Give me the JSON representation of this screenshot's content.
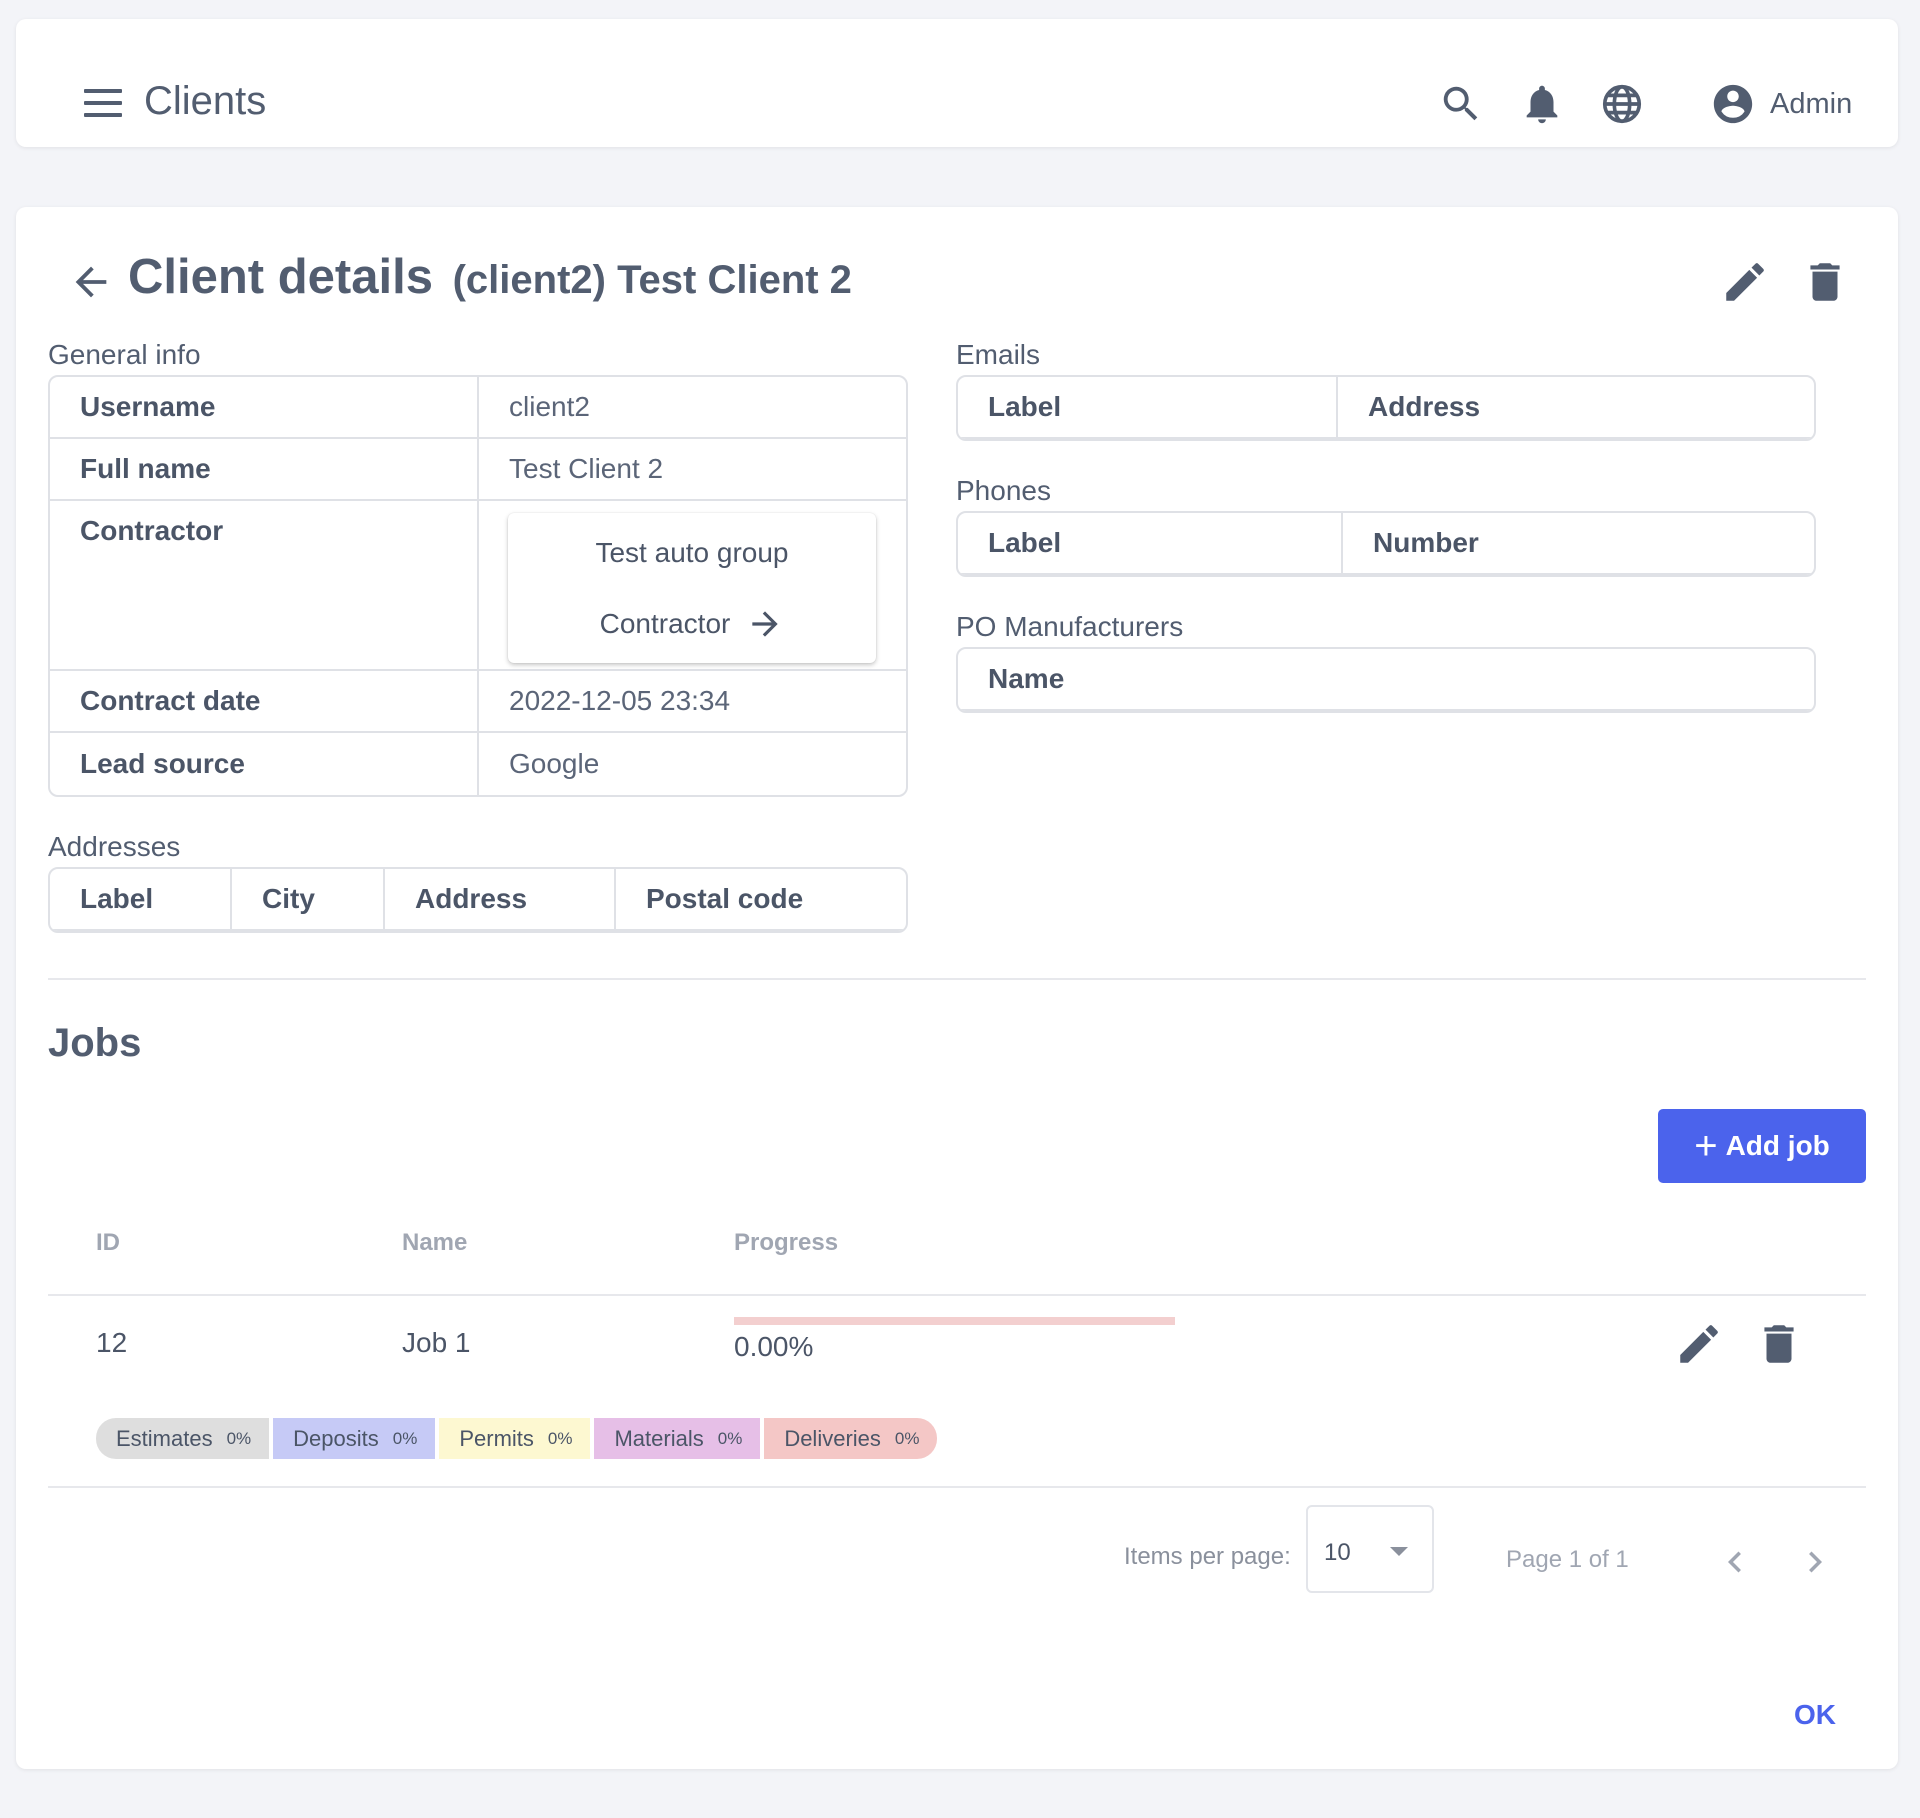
{
  "header": {
    "title": "Clients",
    "user_label": "Admin"
  },
  "page": {
    "title": "Client details",
    "subtitle": "(client2) Test Client 2"
  },
  "general_info": {
    "label": "General info",
    "rows": [
      {
        "key": "Username",
        "value": "client2"
      },
      {
        "key": "Full name",
        "value": "Test Client 2"
      },
      {
        "key": "Contractor",
        "value": ""
      },
      {
        "key": "Contract date",
        "value": "2022-12-05 23:34"
      },
      {
        "key": "Lead source",
        "value": "Google"
      }
    ],
    "contractor": {
      "name": "Test auto group",
      "link_label": "Contractor"
    }
  },
  "addresses": {
    "label": "Addresses",
    "columns": [
      "Label",
      "City",
      "Address",
      "Postal code"
    ]
  },
  "emails": {
    "label": "Emails",
    "columns": [
      "Label",
      "Address"
    ]
  },
  "phones": {
    "label": "Phones",
    "columns": [
      "Label",
      "Number"
    ]
  },
  "po_manufacturers": {
    "label": "PO Manufacturers",
    "columns": [
      "Name"
    ]
  },
  "jobs": {
    "title": "Jobs",
    "add_label": "Add job",
    "columns": [
      "ID",
      "Name",
      "Progress"
    ],
    "rows": [
      {
        "id": "12",
        "name": "Job 1",
        "progress_text": "0.00%",
        "progress_fraction": 0,
        "chips": [
          {
            "label": "Estimates",
            "pct": "0%",
            "color": "#dedede"
          },
          {
            "label": "Deposits",
            "pct": "0%",
            "color": "#c6caf6"
          },
          {
            "label": "Permits",
            "pct": "0%",
            "color": "#fdf8d1"
          },
          {
            "label": "Materials",
            "pct": "0%",
            "color": "#e6bfe7"
          },
          {
            "label": "Deliveries",
            "pct": "0%",
            "color": "#f4c7c6"
          }
        ]
      }
    ]
  },
  "pagination": {
    "items_per_page_label": "Items per page:",
    "items_per_page": "10",
    "page_info": "Page 1 of 1"
  },
  "footer": {
    "ok_label": "OK"
  },
  "colors": {
    "primary": "#4b63ec",
    "text": "#4b5567",
    "border": "#dfe1e6",
    "progress_track": "#f3cfcf"
  },
  "icons": [
    "menu-icon",
    "search-icon",
    "bell-icon",
    "globe-icon",
    "account-circle-icon",
    "arrow-left-icon",
    "pencil-icon",
    "trash-icon",
    "arrow-right-icon",
    "plus-icon",
    "chevron-left-icon",
    "chevron-right-icon",
    "caret-down-icon"
  ]
}
